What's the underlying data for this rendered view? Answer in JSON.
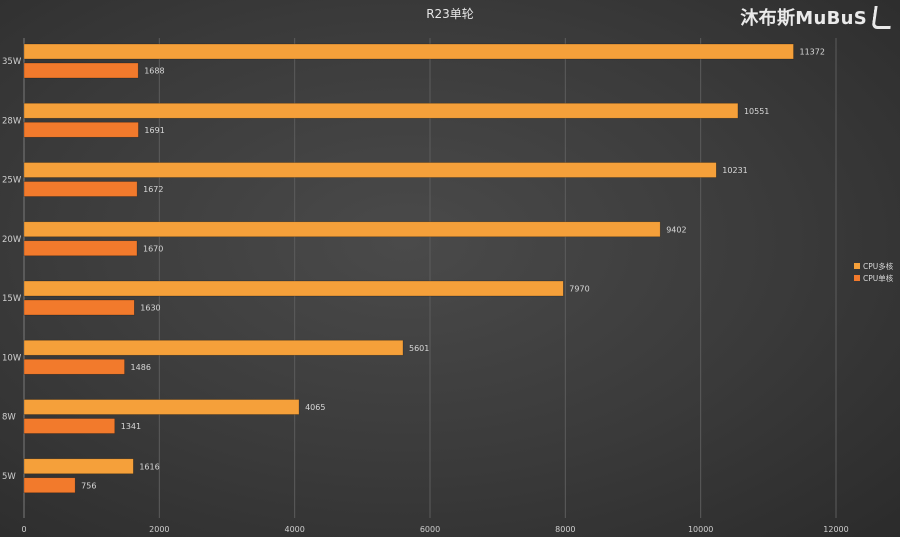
{
  "watermark": "沐布斯MuBuS",
  "chart_data": {
    "type": "bar",
    "orientation": "horizontal",
    "title": "R23单轮",
    "categories": [
      "35W",
      "28W",
      "25W",
      "20W",
      "15W",
      "10W",
      "8W",
      "5W"
    ],
    "series": [
      {
        "name": "CPU多核",
        "color": "#f5a03a",
        "values": [
          11372,
          10551,
          10231,
          9402,
          7970,
          5601,
          4065,
          1616
        ]
      },
      {
        "name": "CPU单核",
        "color": "#f27a2c",
        "values": [
          1688,
          1691,
          1672,
          1670,
          1630,
          1486,
          1341,
          756
        ]
      }
    ],
    "xlim": [
      0,
      12000
    ],
    "xticks": [
      "0",
      "2000",
      "4000",
      "6000",
      "8000",
      "10000",
      "12000"
    ],
    "grid": true,
    "legend": "right"
  }
}
